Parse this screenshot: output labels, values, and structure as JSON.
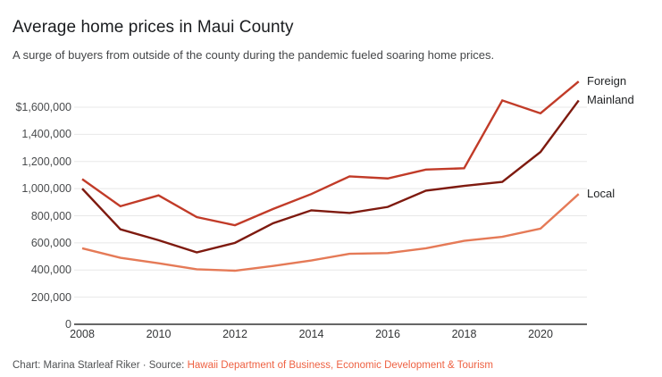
{
  "header": {
    "title": "Average home prices in Maui County",
    "subtitle": "A surge of buyers from outside of the county during the pandemic fueled soaring home prices."
  },
  "footer": {
    "credit": "Chart: Marina Starleaf Riker · Source:",
    "source_link": "Hawaii Department of Business, Economic Development & Tourism",
    "source_link_color": "#ee6142"
  },
  "chart_data": {
    "type": "line",
    "title": "Average home prices in Maui County",
    "subtitle": "A surge of buyers from outside of the county during the pandemic fueled soaring home prices.",
    "x": [
      2008,
      2009,
      2010,
      2011,
      2012,
      2013,
      2014,
      2015,
      2016,
      2017,
      2018,
      2019,
      2020,
      2021
    ],
    "series": [
      {
        "name": "Foreign",
        "color": "#c13b28",
        "values": [
          1070000,
          870000,
          950000,
          790000,
          730000,
          850000,
          960000,
          1090000,
          1075000,
          1140000,
          1150000,
          1650000,
          1555000,
          1790000
        ]
      },
      {
        "name": "Mainland",
        "color": "#7e1a0f",
        "values": [
          1000000,
          700000,
          620000,
          530000,
          600000,
          745000,
          840000,
          820000,
          865000,
          985000,
          1020000,
          1050000,
          1270000,
          1650000
        ]
      },
      {
        "name": "Local",
        "color": "#e57a57",
        "values": [
          560000,
          490000,
          450000,
          405000,
          395000,
          430000,
          470000,
          520000,
          525000,
          560000,
          615000,
          645000,
          705000,
          960000
        ]
      }
    ],
    "yticks": [
      {
        "label": "$1,600,000",
        "value": 1600000
      },
      {
        "label": "1,400,000",
        "value": 1400000
      },
      {
        "label": "1,200,000",
        "value": 1200000
      },
      {
        "label": "1,000,000",
        "value": 1000000
      },
      {
        "label": "800,000",
        "value": 800000
      },
      {
        "label": "600,000",
        "value": 600000
      },
      {
        "label": "400,000",
        "value": 400000
      },
      {
        "label": "200,000",
        "value": 200000
      },
      {
        "label": "0",
        "value": 0
      }
    ],
    "xticks": [
      {
        "label": "2008",
        "value": 2008
      },
      {
        "label": "2010",
        "value": 2010
      },
      {
        "label": "2012",
        "value": 2012
      },
      {
        "label": "2014",
        "value": 2014
      },
      {
        "label": "2016",
        "value": 2016
      },
      {
        "label": "2018",
        "value": 2018
      },
      {
        "label": "2020",
        "value": 2020
      }
    ],
    "xlabel": "",
    "ylabel": "",
    "xlim": [
      2008,
      2021
    ],
    "ylim": [
      0,
      1800000
    ],
    "grid": "horizontal",
    "grid_color": "#e8e8e8",
    "baseline_color": "#333333",
    "legend_position": "right, at line ends"
  }
}
